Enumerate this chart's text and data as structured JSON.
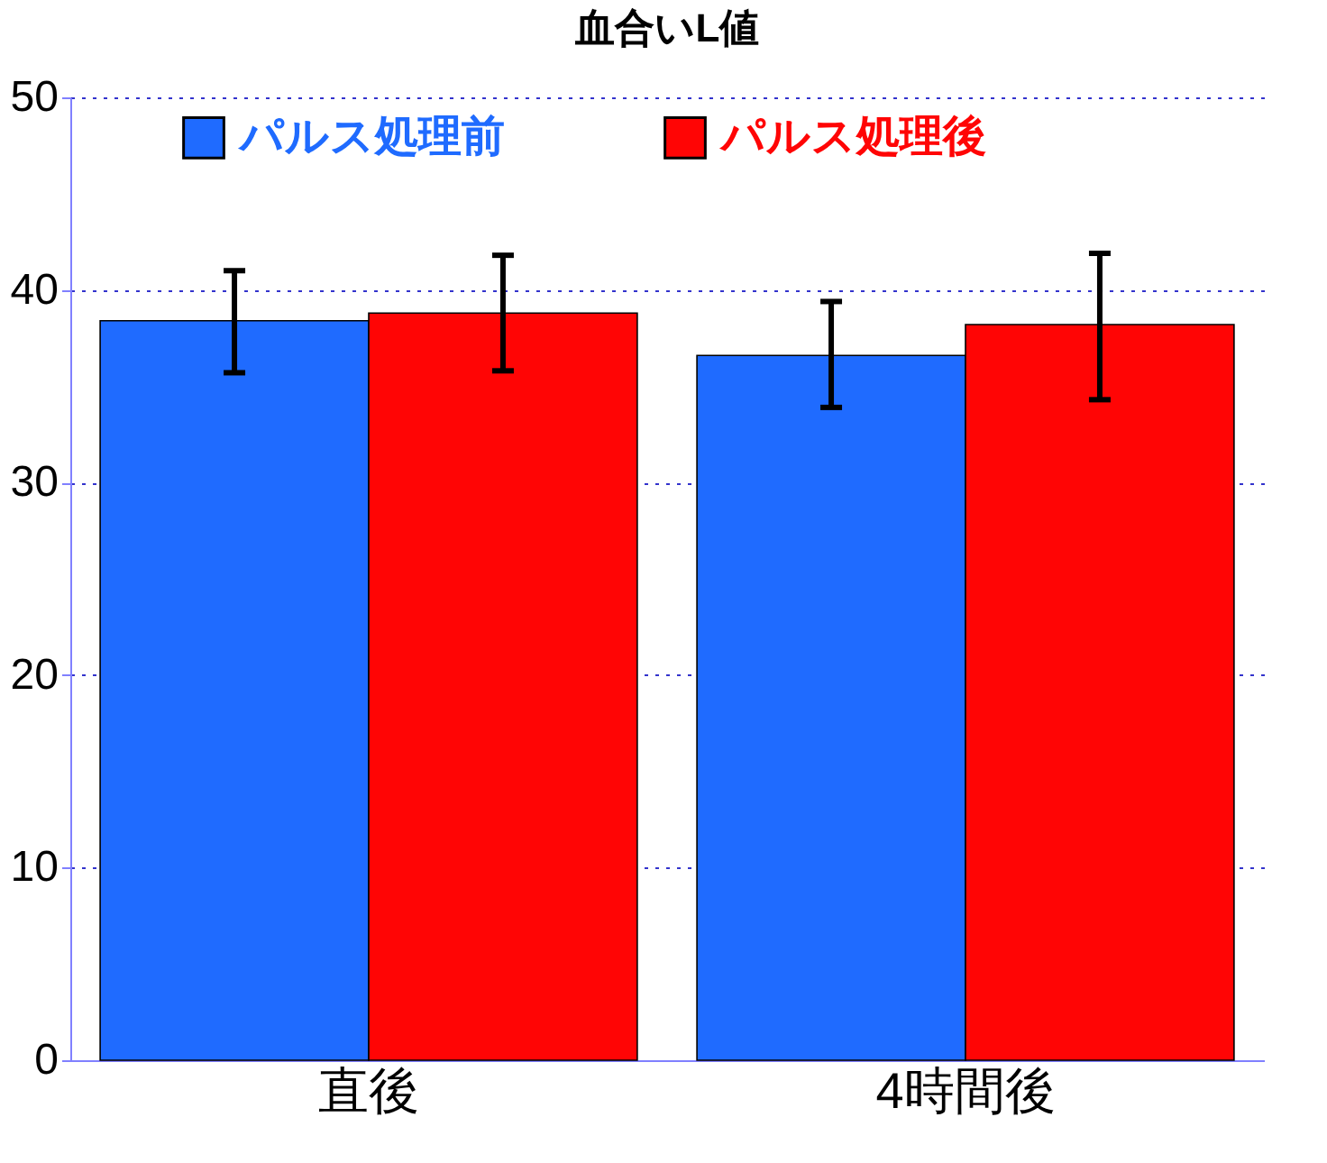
{
  "chart_data": {
    "type": "bar",
    "title": "血合いL値",
    "categories": [
      "直後",
      "4時間後"
    ],
    "series": [
      {
        "name": "パルス処理前",
        "color": "#1f6bff",
        "values": [
          38.4,
          36.6
        ],
        "errors": [
          [
            35.7,
            41.0
          ],
          [
            33.9,
            39.4
          ]
        ]
      },
      {
        "name": "パルス処理後",
        "color": "#ff0505",
        "values": [
          38.8,
          38.2
        ],
        "errors": [
          [
            35.8,
            41.8
          ],
          [
            34.3,
            41.9
          ]
        ]
      }
    ],
    "ylim": [
      0,
      50
    ],
    "yticks": [
      0,
      10,
      20,
      30,
      40,
      50
    ],
    "grid": "y",
    "legend": "top"
  }
}
